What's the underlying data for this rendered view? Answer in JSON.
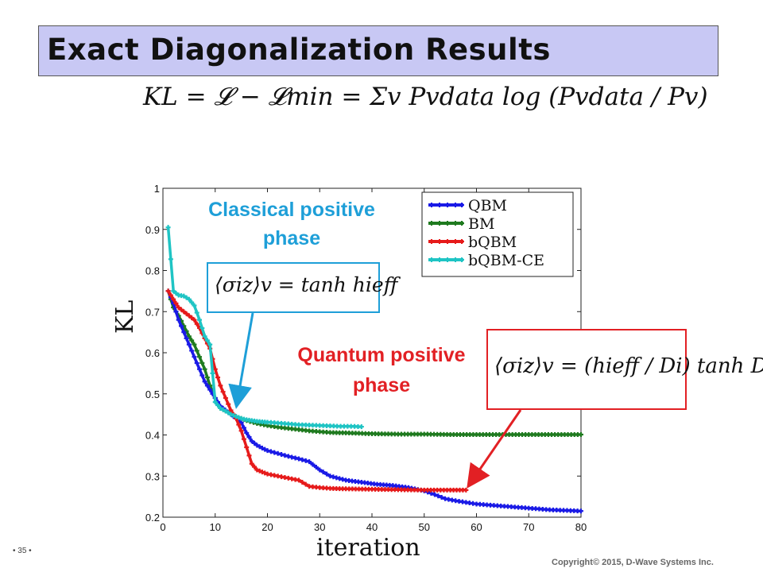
{
  "slide": {
    "title": "Exact Diagonalization Results",
    "formula": "KL = 𝓛 − 𝓛min = Σv Pvdata log (Pvdata / Pv)",
    "page_number": "• 35 •",
    "copyright": "Copyright© 2015, D-Wave Systems Inc."
  },
  "annotations": {
    "classical_label": "Classical positive phase",
    "classical_equation": "⟨σiz⟩v = tanh hieff",
    "quantum_label": "Quantum positive phase",
    "quantum_equation": "⟨σiz⟩v = (hieff / Di) tanh Di",
    "classical_color": "#1e9fd8",
    "quantum_color": "#e22024"
  },
  "chart_data": {
    "type": "line",
    "title": "",
    "xlabel": "iteration",
    "ylabel": "KL",
    "xlim": [
      0,
      80
    ],
    "ylim": [
      0.2,
      1
    ],
    "xticks": [
      0,
      10,
      20,
      30,
      40,
      50,
      60,
      70,
      80
    ],
    "yticks": [
      0.2,
      0.3,
      0.4,
      0.5,
      0.6,
      0.7,
      0.8,
      0.9,
      1
    ],
    "grid": false,
    "legend_position": "top-right",
    "series": [
      {
        "name": "QBM",
        "color": "#1a1ae6",
        "x": [
          1,
          2,
          3,
          4,
          5,
          6,
          7,
          8,
          9,
          10,
          11,
          12,
          13,
          14,
          15,
          16,
          17,
          18,
          19,
          20,
          22,
          24,
          26,
          28,
          30,
          32,
          35,
          38,
          41,
          44,
          47,
          50,
          52,
          54,
          56,
          58,
          60,
          62,
          64,
          66,
          68,
          70,
          72,
          74,
          76,
          78,
          80
        ],
        "values": [
          0.75,
          0.72,
          0.68,
          0.65,
          0.62,
          0.59,
          0.56,
          0.53,
          0.51,
          0.49,
          0.47,
          0.46,
          0.45,
          0.44,
          0.43,
          0.405,
          0.385,
          0.375,
          0.368,
          0.362,
          0.355,
          0.348,
          0.342,
          0.335,
          0.315,
          0.3,
          0.29,
          0.285,
          0.28,
          0.277,
          0.272,
          0.264,
          0.255,
          0.245,
          0.24,
          0.236,
          0.232,
          0.23,
          0.228,
          0.226,
          0.224,
          0.222,
          0.22,
          0.218,
          0.217,
          0.216,
          0.215
        ]
      },
      {
        "name": "BM",
        "color": "#1f7a1f",
        "x": [
          1,
          2,
          3,
          4,
          5,
          6,
          7,
          8,
          9,
          10,
          11,
          12,
          13,
          14,
          15,
          16,
          18,
          20,
          22,
          24,
          26,
          28,
          30,
          32,
          35,
          40,
          45,
          50,
          55,
          60,
          65,
          70,
          75,
          80
        ],
        "values": [
          0.75,
          0.71,
          0.69,
          0.665,
          0.64,
          0.62,
          0.59,
          0.56,
          0.52,
          0.49,
          0.465,
          0.458,
          0.452,
          0.445,
          0.44,
          0.435,
          0.428,
          0.423,
          0.419,
          0.416,
          0.413,
          0.41,
          0.408,
          0.406,
          0.405,
          0.403,
          0.402,
          0.402,
          0.401,
          0.401,
          0.401,
          0.401,
          0.401,
          0.401
        ]
      },
      {
        "name": "bQBM",
        "color": "#e61a1a",
        "x": [
          1,
          2,
          3,
          4,
          5,
          6,
          7,
          8,
          9,
          10,
          11,
          12,
          13,
          14,
          15,
          16,
          17,
          18,
          19,
          20,
          22,
          24,
          26,
          28,
          30,
          32,
          35,
          40,
          45,
          50,
          55,
          58
        ],
        "values": [
          0.75,
          0.73,
          0.71,
          0.7,
          0.69,
          0.68,
          0.66,
          0.635,
          0.61,
          0.56,
          0.52,
          0.49,
          0.46,
          0.44,
          0.41,
          0.37,
          0.33,
          0.315,
          0.31,
          0.305,
          0.3,
          0.295,
          0.29,
          0.275,
          0.272,
          0.27,
          0.269,
          0.268,
          0.267,
          0.266,
          0.266,
          0.266
        ]
      },
      {
        "name": "bQBM-CE",
        "color": "#1fc4c4",
        "x": [
          1,
          2,
          3,
          4,
          5,
          6,
          7,
          8,
          9,
          10,
          11,
          12,
          13,
          14,
          15,
          16,
          17,
          18,
          19,
          20,
          22,
          24,
          26,
          28,
          30,
          32,
          34,
          36,
          38
        ],
        "values": [
          0.905,
          0.75,
          0.74,
          0.738,
          0.73,
          0.715,
          0.68,
          0.64,
          0.62,
          0.48,
          0.465,
          0.458,
          0.45,
          0.445,
          0.44,
          0.437,
          0.435,
          0.433,
          0.432,
          0.431,
          0.429,
          0.427,
          0.425,
          0.424,
          0.423,
          0.422,
          0.421,
          0.421,
          0.42
        ]
      }
    ]
  }
}
